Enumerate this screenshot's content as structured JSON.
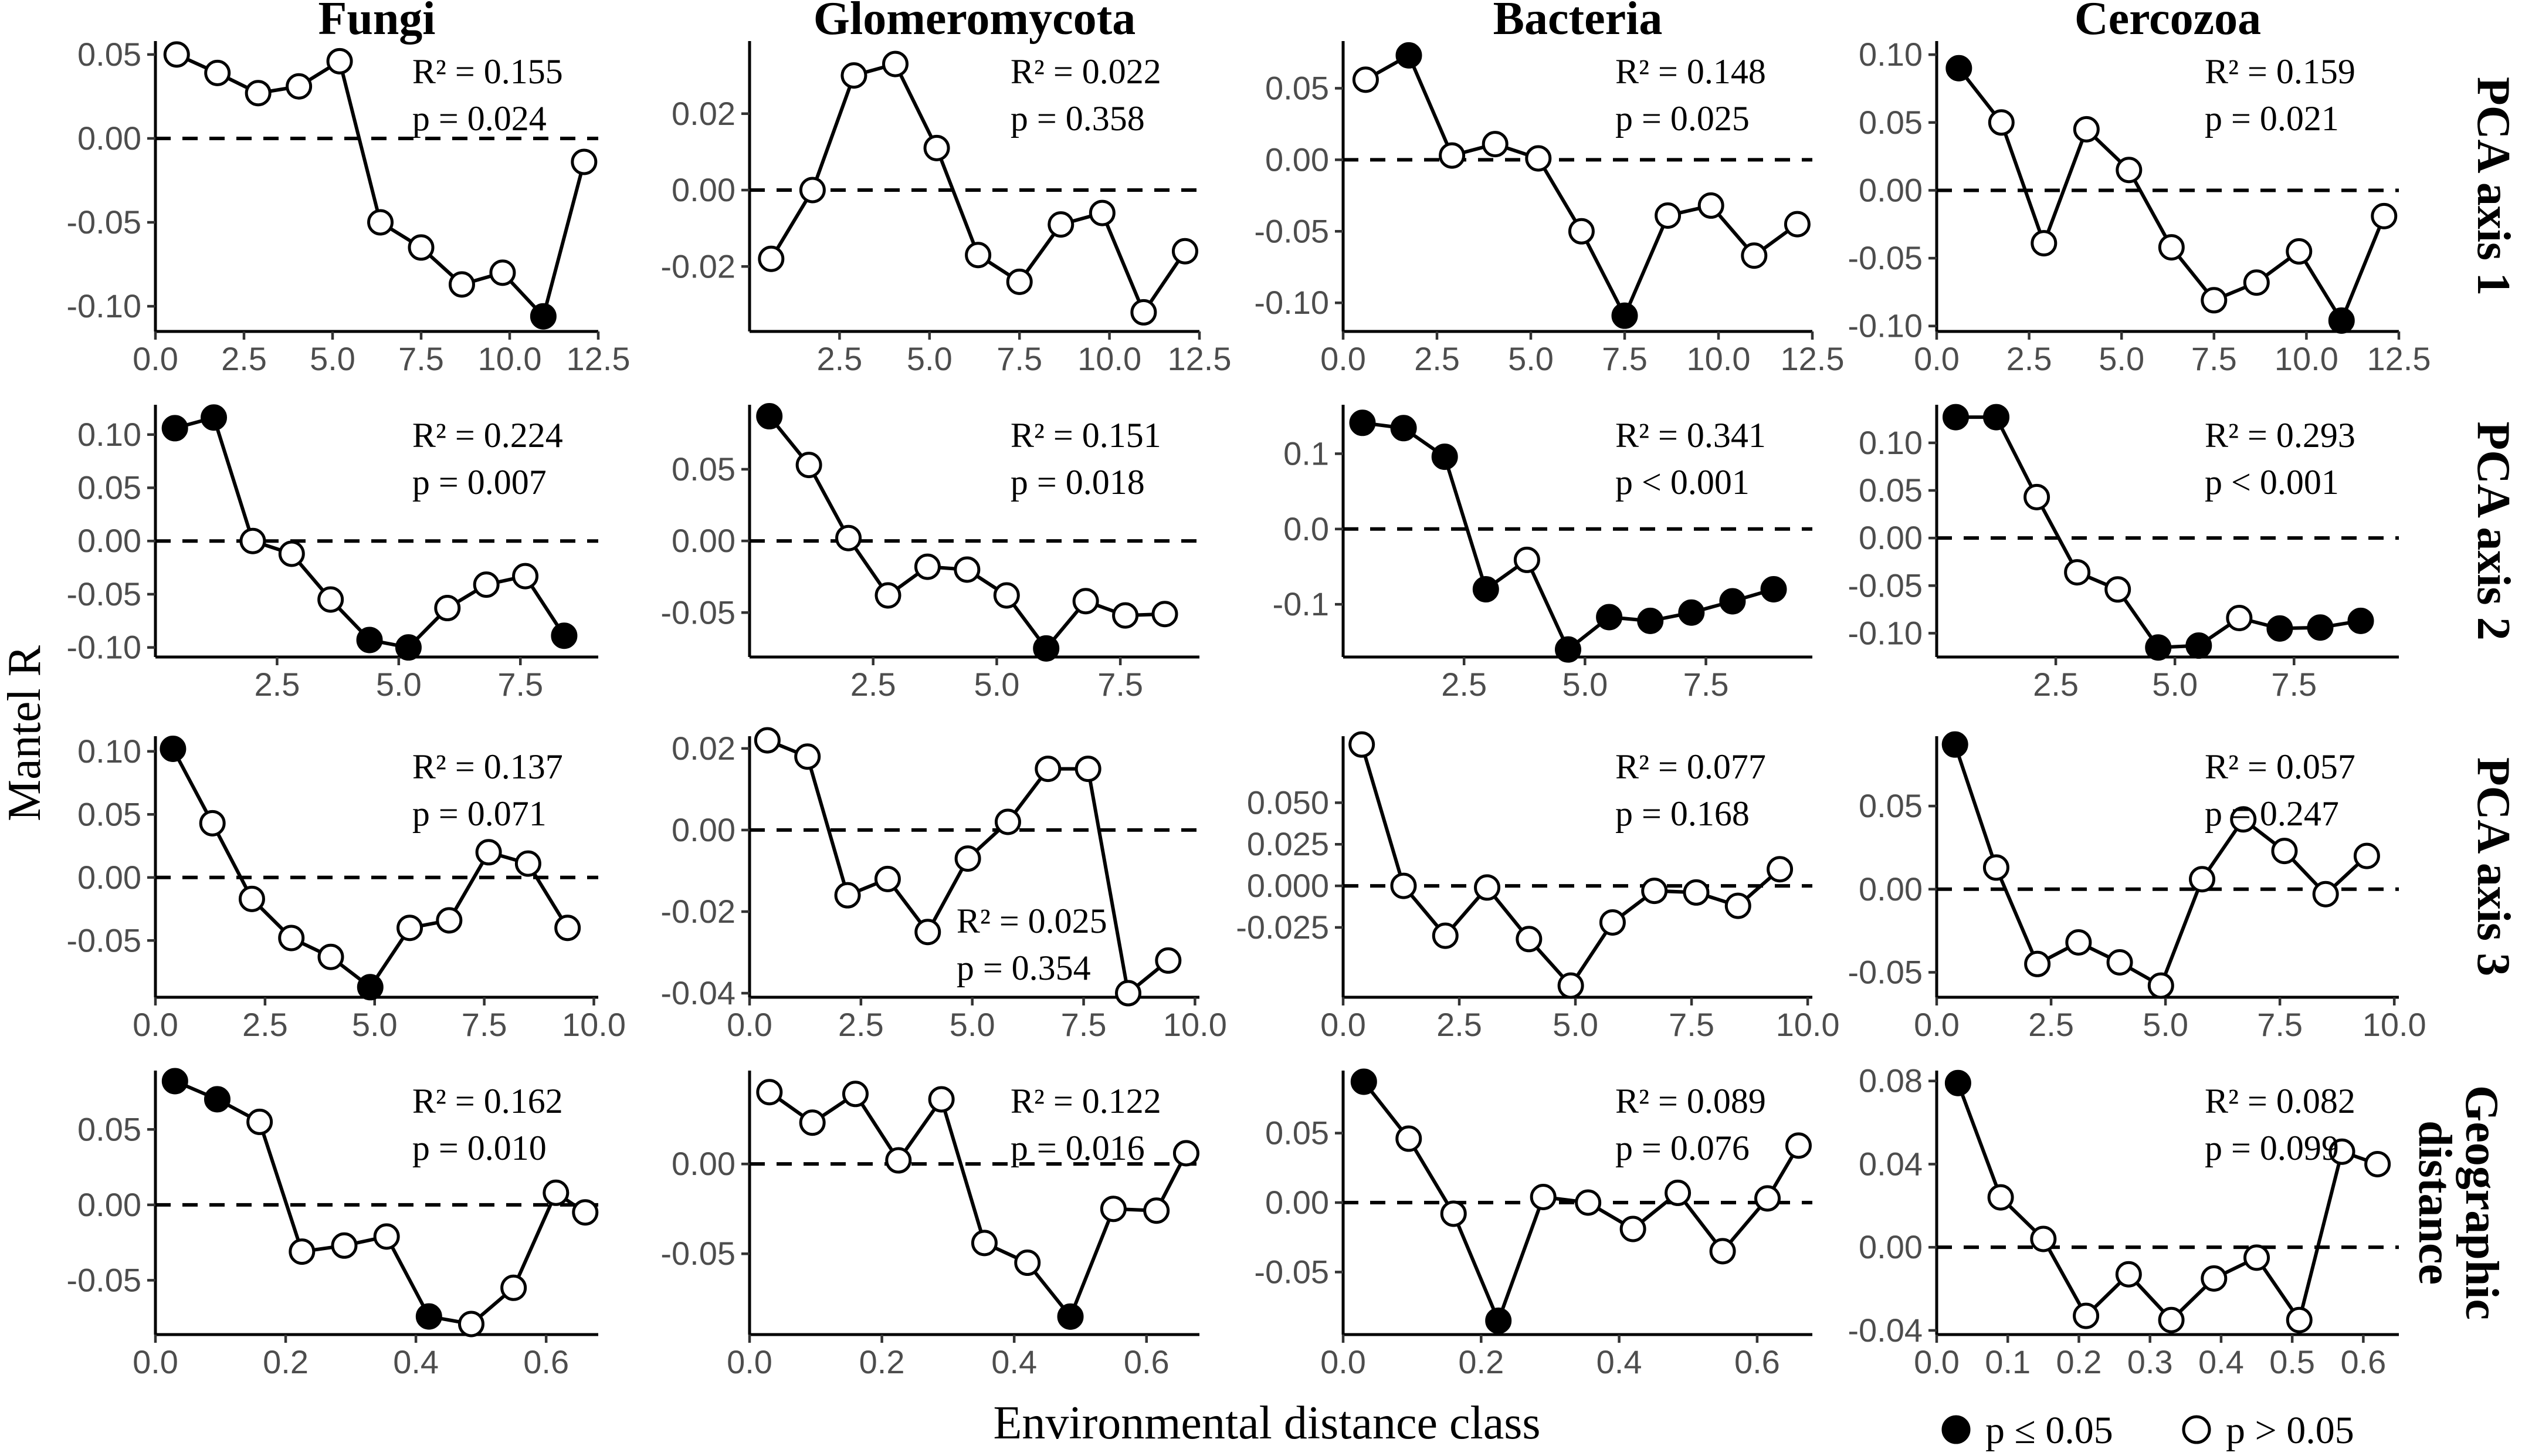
{
  "xlabel": "Environmental distance class",
  "ylabel": "Mantel R",
  "columns": [
    "Fungi",
    "Glomeromycota",
    "Bacteria",
    "Cercozoa"
  ],
  "rows": [
    [
      "PCA axis 1"
    ],
    [
      "PCA axis 2"
    ],
    [
      "PCA axis 3"
    ],
    [
      "Geographic",
      "distance"
    ]
  ],
  "legend": {
    "sig_label": "p ≤ 0.05",
    "nonsig_label": "p > 0.05"
  },
  "chart_data": [
    {
      "type": "line",
      "row": 0,
      "col": 0,
      "group": "Fungi",
      "variable": "PCA axis 1",
      "xlim": [
        0,
        12.5
      ],
      "ylim": [
        -0.115,
        0.058
      ],
      "xticks": [
        "0.0",
        "2.5",
        "5.0",
        "7.5",
        "10.0",
        "12.5"
      ],
      "yticks": [
        "0.05",
        "0.00",
        "-0.05",
        "-0.10"
      ],
      "x": [
        0.6,
        1.75,
        2.9,
        4.05,
        5.2,
        6.35,
        7.5,
        8.65,
        9.8,
        10.95,
        12.1
      ],
      "y": [
        0.05,
        0.039,
        0.027,
        0.031,
        0.046,
        -0.05,
        -0.065,
        -0.087,
        -0.08,
        -0.106,
        -0.014
      ],
      "significant": [
        false,
        false,
        false,
        false,
        false,
        false,
        false,
        false,
        false,
        true,
        false
      ],
      "r2": "R² = 0.155",
      "p": "p = 0.024"
    },
    {
      "type": "line",
      "row": 0,
      "col": 1,
      "group": "Glomeromycota",
      "variable": "PCA axis 1",
      "xlim": [
        0,
        12.5
      ],
      "ylim": [
        -0.037,
        0.039
      ],
      "xticks": [
        "2.5",
        "5.0",
        "7.5",
        "10.0",
        "12.5"
      ],
      "yticks": [
        "0.02",
        "0.00",
        "-0.02"
      ],
      "x": [
        0.6,
        1.75,
        2.9,
        4.05,
        5.2,
        6.35,
        7.5,
        8.65,
        9.8,
        10.95,
        12.1
      ],
      "y": [
        -0.018,
        0.0,
        0.03,
        0.033,
        0.011,
        -0.017,
        -0.024,
        -0.009,
        -0.006,
        -0.032,
        -0.016
      ],
      "significant": [
        false,
        false,
        false,
        false,
        false,
        false,
        false,
        false,
        false,
        false,
        false
      ],
      "r2": "R² = 0.022",
      "p": "p = 0.358"
    },
    {
      "type": "line",
      "row": 0,
      "col": 2,
      "group": "Bacteria",
      "variable": "PCA axis 1",
      "xlim": [
        0,
        12.5
      ],
      "ylim": [
        -0.12,
        0.083
      ],
      "xticks": [
        "0.0",
        "2.5",
        "5.0",
        "7.5",
        "10.0",
        "12.5"
      ],
      "yticks": [
        "0.05",
        "0.00",
        "-0.05",
        "-0.10"
      ],
      "x": [
        0.6,
        1.75,
        2.9,
        4.05,
        5.2,
        6.35,
        7.5,
        8.65,
        9.8,
        10.95,
        12.1
      ],
      "y": [
        0.056,
        0.073,
        0.003,
        0.011,
        0.001,
        -0.05,
        -0.109,
        -0.039,
        -0.032,
        -0.067,
        -0.045
      ],
      "significant": [
        false,
        true,
        false,
        false,
        false,
        false,
        true,
        false,
        false,
        false,
        false
      ],
      "r2": "R² = 0.148",
      "p": "p = 0.025"
    },
    {
      "type": "line",
      "row": 0,
      "col": 3,
      "group": "Cercozoa",
      "variable": "PCA axis 1",
      "xlim": [
        0,
        12.5
      ],
      "ylim": [
        -0.104,
        0.11
      ],
      "xticks": [
        "0.0",
        "2.5",
        "5.0",
        "7.5",
        "10.0",
        "12.5"
      ],
      "yticks": [
        "0.10",
        "0.05",
        "0.00",
        "-0.05",
        "-0.10"
      ],
      "x": [
        0.6,
        1.75,
        2.9,
        4.05,
        5.2,
        6.35,
        7.5,
        8.65,
        9.8,
        10.95,
        12.1
      ],
      "y": [
        0.09,
        0.05,
        -0.039,
        0.045,
        0.015,
        -0.042,
        -0.081,
        -0.068,
        -0.045,
        -0.096,
        -0.019
      ],
      "significant": [
        true,
        false,
        false,
        false,
        false,
        false,
        false,
        false,
        false,
        true,
        false
      ],
      "r2": "R² = 0.159",
      "p": "p = 0.021"
    },
    {
      "type": "line",
      "row": 1,
      "col": 0,
      "group": "Fungi",
      "variable": "PCA axis 2",
      "xlim": [
        0,
        9.1
      ],
      "ylim": [
        -0.109,
        0.128
      ],
      "xticks": [
        "2.5",
        "5.0",
        "7.5"
      ],
      "yticks": [
        "0.10",
        "0.05",
        "0.00",
        "-0.05",
        "-0.10"
      ],
      "x": [
        0.4,
        1.2,
        2.0,
        2.8,
        3.6,
        4.4,
        5.2,
        6.0,
        6.8,
        7.6,
        8.4
      ],
      "y": [
        0.106,
        0.116,
        0.0,
        -0.012,
        -0.055,
        -0.093,
        -0.1,
        -0.063,
        -0.041,
        -0.033,
        -0.089
      ],
      "significant": [
        true,
        true,
        false,
        false,
        false,
        true,
        true,
        false,
        false,
        false,
        true
      ],
      "r2": "R² = 0.224",
      "p": "p = 0.007"
    },
    {
      "type": "line",
      "row": 1,
      "col": 1,
      "group": "Glomeromycota",
      "variable": "PCA axis 2",
      "xlim": [
        0,
        9.1
      ],
      "ylim": [
        -0.081,
        0.095
      ],
      "xticks": [
        "2.5",
        "5.0",
        "7.5"
      ],
      "yticks": [
        "0.05",
        "0.00",
        "-0.05"
      ],
      "x": [
        0.4,
        1.2,
        2.0,
        2.8,
        3.6,
        4.4,
        5.2,
        6.0,
        6.8,
        7.6,
        8.4
      ],
      "y": [
        0.087,
        0.053,
        0.002,
        -0.038,
        -0.018,
        -0.02,
        -0.038,
        -0.075,
        -0.042,
        -0.052,
        -0.051
      ],
      "significant": [
        true,
        false,
        false,
        false,
        false,
        false,
        false,
        true,
        false,
        false,
        false
      ],
      "r2": "R² = 0.151",
      "p": "p = 0.018"
    },
    {
      "type": "line",
      "row": 1,
      "col": 2,
      "group": "Bacteria",
      "variable": "PCA axis 2",
      "xlim": [
        0,
        9.7
      ],
      "ylim": [
        -0.17,
        0.165
      ],
      "xticks": [
        "2.5",
        "5.0",
        "7.5"
      ],
      "yticks": [
        "0.1",
        "0.0",
        "-0.1"
      ],
      "x": [
        0.4,
        1.25,
        2.1,
        2.95,
        3.8,
        4.65,
        5.5,
        6.35,
        7.2,
        8.05,
        8.9
      ],
      "y": [
        0.141,
        0.134,
        0.096,
        -0.08,
        -0.041,
        -0.16,
        -0.117,
        -0.122,
        -0.111,
        -0.096,
        -0.08
      ],
      "significant": [
        true,
        true,
        true,
        true,
        false,
        true,
        true,
        true,
        true,
        true,
        true
      ],
      "r2": "R² = 0.341",
      "p": "p < 0.001"
    },
    {
      "type": "line",
      "row": 1,
      "col": 3,
      "group": "Cercozoa",
      "variable": "PCA axis 2",
      "xlim": [
        0,
        9.7
      ],
      "ylim": [
        -0.125,
        0.14
      ],
      "xticks": [
        "2.5",
        "5.0",
        "7.5"
      ],
      "yticks": [
        "0.10",
        "0.05",
        "0.00",
        "-0.05",
        "-0.10"
      ],
      "x": [
        0.4,
        1.25,
        2.1,
        2.95,
        3.8,
        4.65,
        5.5,
        6.35,
        7.2,
        8.05,
        8.9
      ],
      "y": [
        0.127,
        0.127,
        0.043,
        -0.036,
        -0.054,
        -0.115,
        -0.113,
        -0.084,
        -0.095,
        -0.094,
        -0.087
      ],
      "significant": [
        true,
        true,
        false,
        false,
        false,
        true,
        true,
        false,
        true,
        true,
        true
      ],
      "r2": "R² = 0.293",
      "p": "p < 0.001"
    },
    {
      "type": "line",
      "row": 2,
      "col": 0,
      "group": "Fungi",
      "variable": "PCA axis 3",
      "xlim": [
        0,
        10.1
      ],
      "ylim": [
        -0.095,
        0.112
      ],
      "xticks": [
        "0.0",
        "2.5",
        "5.0",
        "7.5",
        "10.0"
      ],
      "yticks": [
        "0.10",
        "0.05",
        "0.00",
        "-0.05"
      ],
      "x": [
        0.4,
        1.3,
        2.2,
        3.1,
        4.0,
        4.9,
        5.8,
        6.7,
        7.6,
        8.5,
        9.4
      ],
      "y": [
        0.102,
        0.043,
        -0.017,
        -0.048,
        -0.063,
        -0.087,
        -0.04,
        -0.034,
        0.02,
        0.011,
        -0.04
      ],
      "significant": [
        true,
        false,
        false,
        false,
        false,
        true,
        false,
        false,
        false,
        false,
        false
      ],
      "r2": "R² = 0.137",
      "p": "p = 0.071"
    },
    {
      "type": "line",
      "row": 2,
      "col": 1,
      "group": "Glomeromycota",
      "variable": "PCA axis 3",
      "xlim": [
        0,
        10.1
      ],
      "ylim": [
        -0.041,
        0.023
      ],
      "xticks": [
        "0.0",
        "2.5",
        "5.0",
        "7.5",
        "10.0"
      ],
      "yticks": [
        "0.02",
        "0.00",
        "-0.02",
        "-0.04"
      ],
      "x": [
        0.4,
        1.3,
        2.2,
        3.1,
        4.0,
        4.9,
        5.8,
        6.7,
        7.6,
        8.5,
        9.4
      ],
      "y": [
        0.022,
        0.018,
        -0.016,
        -0.012,
        -0.025,
        -0.007,
        0.002,
        0.015,
        0.015,
        -0.04,
        -0.032
      ],
      "significant": [
        false,
        false,
        false,
        false,
        false,
        false,
        false,
        false,
        false,
        false,
        false
      ],
      "r2": "R² = 0.025",
      "p": "p = 0.354"
    },
    {
      "type": "line",
      "row": 2,
      "col": 2,
      "group": "Bacteria",
      "variable": "PCA axis 3",
      "xlim": [
        0,
        10.1
      ],
      "ylim": [
        -0.067,
        0.09
      ],
      "xticks": [
        "0.0",
        "2.5",
        "5.0",
        "7.5",
        "10.0"
      ],
      "yticks": [
        "0.050",
        "0.025",
        "0.000",
        "-0.025"
      ],
      "x": [
        0.4,
        1.3,
        2.2,
        3.1,
        4.0,
        4.9,
        5.8,
        6.7,
        7.6,
        8.5,
        9.4
      ],
      "y": [
        0.085,
        0.0,
        -0.03,
        -0.001,
        -0.032,
        -0.06,
        -0.022,
        -0.003,
        -0.004,
        -0.012,
        0.01
      ],
      "significant": [
        false,
        false,
        false,
        false,
        false,
        false,
        false,
        false,
        false,
        false,
        false
      ],
      "r2": "R² = 0.077",
      "p": "p = 0.168"
    },
    {
      "type": "line",
      "row": 2,
      "col": 3,
      "group": "Cercozoa",
      "variable": "PCA axis 3",
      "xlim": [
        0,
        10.1
      ],
      "ylim": [
        -0.065,
        0.092
      ],
      "xticks": [
        "0.0",
        "2.5",
        "5.0",
        "7.5",
        "10.0"
      ],
      "yticks": [
        "0.05",
        "0.00",
        "-0.05"
      ],
      "x": [
        0.4,
        1.3,
        2.2,
        3.1,
        4.0,
        4.9,
        5.8,
        6.7,
        7.6,
        8.5,
        9.4
      ],
      "y": [
        0.087,
        0.013,
        -0.045,
        -0.032,
        -0.044,
        -0.058,
        0.006,
        0.042,
        0.023,
        -0.003,
        0.02
      ],
      "significant": [
        true,
        false,
        false,
        false,
        false,
        false,
        false,
        false,
        false,
        false,
        false
      ],
      "r2": "R² = 0.057",
      "p": "p = 0.247"
    },
    {
      "type": "line",
      "row": 3,
      "col": 0,
      "group": "Fungi",
      "variable": "Geographic distance",
      "xlim": [
        0,
        0.68
      ],
      "ylim": [
        -0.086,
        0.089
      ],
      "xticks": [
        "0.0",
        "0.2",
        "0.4",
        "0.6"
      ],
      "yticks": [
        "0.05",
        "0.00",
        "-0.05"
      ],
      "x": [
        0.03,
        0.095,
        0.16,
        0.225,
        0.29,
        0.355,
        0.42,
        0.485,
        0.55,
        0.615,
        0.66
      ],
      "y": [
        0.082,
        0.07,
        0.055,
        -0.031,
        -0.027,
        -0.021,
        -0.074,
        -0.079,
        -0.055,
        0.008,
        -0.005
      ],
      "significant": [
        true,
        true,
        false,
        false,
        false,
        false,
        true,
        false,
        false,
        false,
        false
      ],
      "r2": "R² = 0.162",
      "p": "p = 0.010"
    },
    {
      "type": "line",
      "row": 3,
      "col": 1,
      "group": "Glomeromycota",
      "variable": "Geographic distance",
      "xlim": [
        0,
        0.68
      ],
      "ylim": [
        -0.095,
        0.052
      ],
      "xticks": [
        "0.0",
        "0.2",
        "0.4",
        "0.6"
      ],
      "yticks": [
        "0.00",
        "-0.05"
      ],
      "x": [
        0.03,
        0.095,
        0.16,
        0.225,
        0.29,
        0.355,
        0.42,
        0.485,
        0.55,
        0.615,
        0.66
      ],
      "y": [
        0.04,
        0.023,
        0.039,
        0.002,
        0.036,
        -0.044,
        -0.055,
        -0.085,
        -0.025,
        -0.026,
        0.006
      ],
      "significant": [
        false,
        false,
        false,
        false,
        false,
        false,
        false,
        true,
        false,
        false,
        false
      ],
      "r2": "R² = 0.122",
      "p": "p = 0.016"
    },
    {
      "type": "line",
      "row": 3,
      "col": 2,
      "group": "Bacteria",
      "variable": "Geographic distance",
      "xlim": [
        0,
        0.68
      ],
      "ylim": [
        -0.095,
        0.095
      ],
      "xticks": [
        "0.0",
        "0.2",
        "0.4",
        "0.6"
      ],
      "yticks": [
        "0.05",
        "0.00",
        "-0.05"
      ],
      "x": [
        0.03,
        0.095,
        0.16,
        0.225,
        0.29,
        0.355,
        0.42,
        0.485,
        0.55,
        0.615,
        0.66
      ],
      "y": [
        0.087,
        0.046,
        -0.008,
        -0.085,
        0.004,
        0.0,
        -0.019,
        0.007,
        -0.035,
        0.003,
        0.041
      ],
      "significant": [
        true,
        false,
        false,
        true,
        false,
        false,
        false,
        false,
        false,
        false,
        false
      ],
      "r2": "R² = 0.089",
      "p": "p = 0.076"
    },
    {
      "type": "line",
      "row": 3,
      "col": 3,
      "group": "Cercozoa",
      "variable": "Geographic distance",
      "xlim": [
        0,
        0.65
      ],
      "ylim": [
        -0.042,
        0.085
      ],
      "xticks": [
        "0.0",
        "0.1",
        "0.2",
        "0.3",
        "0.4",
        "0.5",
        "0.6"
      ],
      "yticks": [
        "0.08",
        "0.04",
        "0.00",
        "-0.04"
      ],
      "x": [
        0.03,
        0.09,
        0.15,
        0.21,
        0.27,
        0.33,
        0.39,
        0.45,
        0.51,
        0.57,
        0.62
      ],
      "y": [
        0.079,
        0.024,
        0.004,
        -0.033,
        -0.013,
        -0.035,
        -0.015,
        -0.005,
        -0.035,
        0.046,
        0.04
      ],
      "significant": [
        true,
        false,
        false,
        false,
        false,
        false,
        false,
        false,
        false,
        false,
        false
      ],
      "r2": "R² = 0.082",
      "p": "p = 0.099"
    }
  ]
}
